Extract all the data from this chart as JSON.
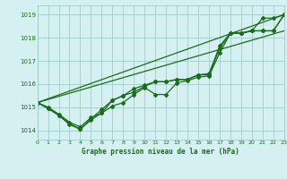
{
  "x": [
    0,
    1,
    2,
    3,
    4,
    5,
    6,
    7,
    8,
    9,
    10,
    11,
    12,
    13,
    14,
    15,
    16,
    17,
    18,
    19,
    20,
    21,
    22,
    23
  ],
  "line1": [
    1015.2,
    1014.95,
    1014.65,
    1014.3,
    1014.05,
    1014.45,
    1014.75,
    1015.05,
    1015.2,
    1015.55,
    1015.85,
    1015.55,
    1015.55,
    1016.05,
    1016.15,
    1016.3,
    1016.35,
    1017.35,
    1018.2,
    1018.2,
    1018.3,
    1018.3,
    1018.3,
    1019.0
  ],
  "line2": [
    1015.2,
    1014.95,
    1014.65,
    1014.25,
    1014.05,
    1014.5,
    1014.9,
    1015.3,
    1015.5,
    1015.65,
    1015.9,
    1016.1,
    1016.1,
    1016.2,
    1016.2,
    1016.4,
    1016.4,
    1017.55,
    1018.2,
    1018.2,
    1018.3,
    1018.3,
    1018.3,
    1019.0
  ],
  "line3": [
    1015.2,
    1015.0,
    1014.7,
    1014.35,
    1014.15,
    1014.55,
    1014.75,
    1015.3,
    1015.5,
    1015.8,
    1015.95,
    1016.1,
    1016.1,
    1016.2,
    1016.2,
    1016.4,
    1016.45,
    1017.65,
    1018.2,
    1018.2,
    1018.3,
    1018.85,
    1018.85,
    1019.0
  ],
  "trend1": [
    1015.2,
    1019.0
  ],
  "trend1_x": [
    0,
    23
  ],
  "trend2": [
    1015.2,
    1018.3
  ],
  "trend2_x": [
    0,
    23
  ],
  "line_color": "#1a6b1a",
  "bg_color": "#d4f0f0",
  "grid_color": "#a0cccc",
  "xlabel": "Graphe pression niveau de la mer (hPa)",
  "xlabel_color": "#1a6b1a",
  "tick_color": "#1a6b1a",
  "ylabel_ticks": [
    1014,
    1015,
    1016,
    1017,
    1018,
    1019
  ],
  "xlim": [
    0,
    23
  ],
  "ylim": [
    1013.6,
    1019.4
  ]
}
